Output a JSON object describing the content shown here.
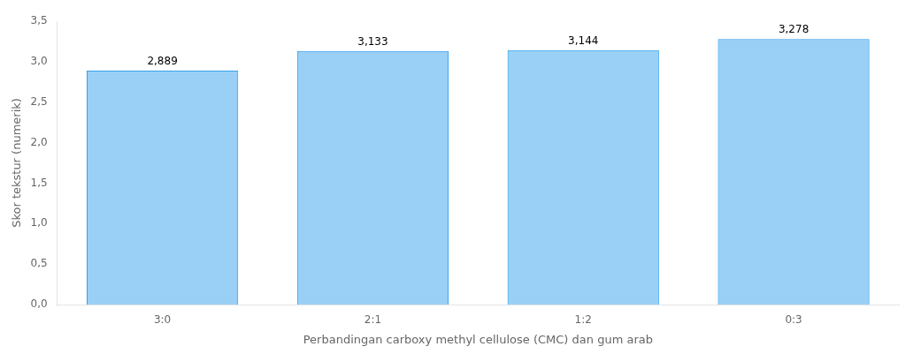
{
  "chart_data": {
    "type": "bar",
    "x_label": "Perbandingan carboxy methyl cellulose (CMC) dan gum arab",
    "y_label": "Skor tekstur (numerik)",
    "categories": [
      "3:0",
      "2:1",
      "1:2",
      "0:3"
    ],
    "values": [
      2.889,
      3.133,
      3.144,
      3.278
    ],
    "value_labels": [
      "2,889",
      "3,133",
      "3,144",
      "3,278"
    ],
    "data_labels": true,
    "ylim": [
      0,
      3.5
    ],
    "yticks": [
      {
        "value": 0.0,
        "label": "0,0"
      },
      {
        "value": 0.5,
        "label": "0,5"
      },
      {
        "value": 1.0,
        "label": "1,0"
      },
      {
        "value": 1.5,
        "label": "1,5"
      },
      {
        "value": 2.0,
        "label": "2,0"
      },
      {
        "value": 2.5,
        "label": "2,5"
      },
      {
        "value": 3.0,
        "label": "3,0"
      },
      {
        "value": 3.5,
        "label": "3,5"
      }
    ],
    "grid": false
  }
}
